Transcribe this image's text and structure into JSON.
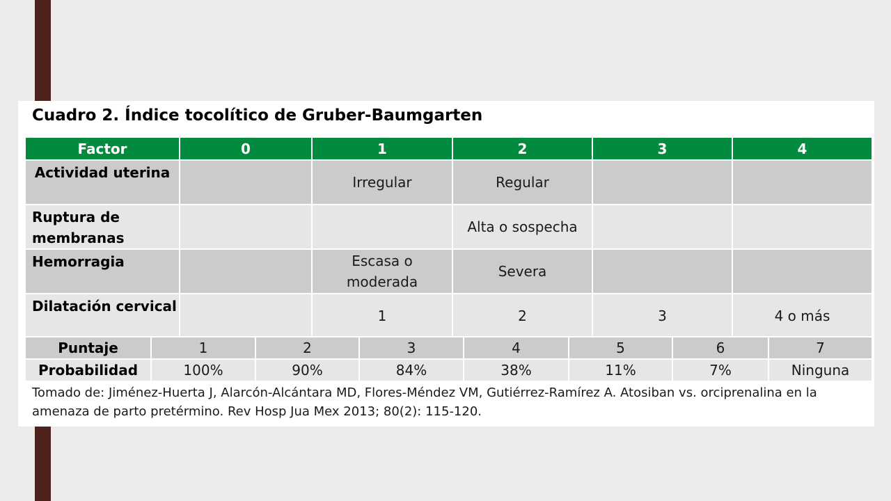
{
  "title": "Cuadro 2.  Índice tocolítico de Gruber-Baumgarten",
  "header": [
    "Factor",
    "0",
    "1",
    "2",
    "3",
    "4"
  ],
  "rows": [
    {
      "factor": "Actividad uterina",
      "cells": [
        "",
        "Irregular",
        "Regular",
        "",
        ""
      ]
    },
    {
      "factor": "Ruptura de membranas",
      "cells": [
        "",
        "",
        "Alta o sospecha",
        "",
        ""
      ]
    },
    {
      "factor": "Hemorragia",
      "cells": [
        "",
        "Escasa o moderada",
        "Severa",
        "",
        ""
      ]
    },
    {
      "factor": "Dilatación cervical",
      "cells": [
        "",
        "1",
        "2",
        "3",
        "4 o más"
      ]
    }
  ],
  "score_table": {
    "puntaje_label": "Puntaje",
    "puntaje": [
      "1",
      "2",
      "3",
      "4",
      "5",
      "6",
      "7"
    ],
    "probabilidad_label": "Probabilidad",
    "probabilidad": [
      "100%",
      "90%",
      "84%",
      "38%",
      "11%",
      "7%",
      "Ninguna"
    ]
  },
  "source": "Tomado de: Jiménez-Huerta J, Alarcón-Alcántara MD, Flores-Méndez VM, Gutiérrez-Ramírez A. Atosiban vs. orciprenalina en la amenaza de parto pretérmino. Rev Hosp Jua Mex 2013; 80(2): 115-120."
}
